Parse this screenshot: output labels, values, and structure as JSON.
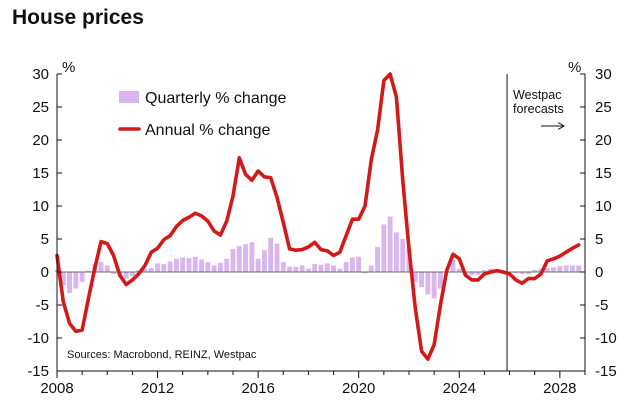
{
  "chart_data": {
    "type": "bar+line",
    "title": "House prices",
    "ylabel_left": "%",
    "ylabel_right": "%",
    "ylim": [
      -15,
      30
    ],
    "yticks": [
      -15,
      -10,
      -5,
      0,
      5,
      10,
      15,
      20,
      25,
      30
    ],
    "xlim": [
      2008,
      2029
    ],
    "xticks": [
      2008,
      2012,
      2016,
      2020,
      2024,
      2028
    ],
    "forecast_start": 2025.9,
    "forecast_label": [
      "Westpac",
      "forecasts"
    ],
    "source_note": "Sources: Macrobond, REINZ, Westpac",
    "series": [
      {
        "name": "Quarterly % change",
        "kind": "bar",
        "color": "#d9b6ee",
        "x": [
          2008.0,
          2008.25,
          2008.5,
          2008.75,
          2009.0,
          2009.25,
          2009.5,
          2009.75,
          2010.0,
          2010.25,
          2010.5,
          2010.75,
          2011.0,
          2011.25,
          2011.5,
          2011.75,
          2012.0,
          2012.25,
          2012.5,
          2012.75,
          2013.0,
          2013.25,
          2013.5,
          2013.75,
          2014.0,
          2014.25,
          2014.5,
          2014.75,
          2015.0,
          2015.25,
          2015.5,
          2015.75,
          2016.0,
          2016.25,
          2016.5,
          2016.75,
          2017.0,
          2017.25,
          2017.5,
          2017.75,
          2018.0,
          2018.25,
          2018.5,
          2018.75,
          2019.0,
          2019.25,
          2019.5,
          2019.75,
          2020.0,
          2020.25,
          2020.5,
          2020.75,
          2021.0,
          2021.25,
          2021.5,
          2021.75,
          2022.0,
          2022.25,
          2022.5,
          2022.75,
          2023.0,
          2023.25,
          2023.5,
          2023.75,
          2024.0,
          2024.25,
          2024.5,
          2024.75,
          2025.0,
          2025.25,
          2025.5,
          2025.75,
          2026.0,
          2026.25,
          2026.5,
          2026.75,
          2027.0,
          2027.25,
          2027.5,
          2027.75,
          2028.0,
          2028.25,
          2028.5,
          2028.75
        ],
        "values": [
          0.3,
          -2.0,
          -3.2,
          -2.5,
          -1.5,
          0.2,
          1.2,
          1.5,
          1.0,
          -0.3,
          -0.5,
          -1.0,
          -0.6,
          0.3,
          0.5,
          0.6,
          1.3,
          1.2,
          1.6,
          2.0,
          2.2,
          2.1,
          2.3,
          1.9,
          1.5,
          1.0,
          1.4,
          2.0,
          3.5,
          3.9,
          4.2,
          4.5,
          2.0,
          3.3,
          5.2,
          4.3,
          1.5,
          0.8,
          0.8,
          1.0,
          0.5,
          1.2,
          1.1,
          1.3,
          1.0,
          0.5,
          1.5,
          2.2,
          2.3,
          -0.2,
          1.0,
          3.8,
          7.2,
          8.4,
          6.0,
          5.0,
          3.5,
          -1.5,
          -2.3,
          -3.4,
          -4.0,
          -2.5,
          0.0,
          1.8,
          0.5,
          -0.5,
          -0.5,
          -0.4,
          0.3,
          0.5,
          0.3,
          -0.3,
          0.0,
          -0.2,
          -0.3,
          -0.3,
          0.3,
          0.5,
          0.6,
          0.7,
          0.9,
          1.0,
          1.0,
          1.0
        ]
      },
      {
        "name": "Annual % change",
        "kind": "line",
        "color": "#d11a1a",
        "x": [
          2008.0,
          2008.25,
          2008.5,
          2008.75,
          2009.0,
          2009.25,
          2009.5,
          2009.75,
          2010.0,
          2010.25,
          2010.5,
          2010.75,
          2011.0,
          2011.25,
          2011.5,
          2011.75,
          2012.0,
          2012.25,
          2012.5,
          2012.75,
          2013.0,
          2013.25,
          2013.5,
          2013.75,
          2014.0,
          2014.25,
          2014.5,
          2014.75,
          2015.0,
          2015.25,
          2015.5,
          2015.75,
          2016.0,
          2016.25,
          2016.5,
          2016.75,
          2017.0,
          2017.25,
          2017.5,
          2017.75,
          2018.0,
          2018.25,
          2018.5,
          2018.75,
          2019.0,
          2019.25,
          2019.5,
          2019.75,
          2020.0,
          2020.25,
          2020.5,
          2020.75,
          2021.0,
          2021.25,
          2021.5,
          2021.75,
          2022.0,
          2022.25,
          2022.5,
          2022.75,
          2023.0,
          2023.25,
          2023.5,
          2023.75,
          2024.0,
          2024.25,
          2024.5,
          2024.75,
          2025.0,
          2025.25,
          2025.5,
          2025.75,
          2026.0,
          2026.25,
          2026.5,
          2026.75,
          2027.0,
          2027.25,
          2027.5,
          2027.75,
          2028.0,
          2028.25,
          2028.5,
          2028.75
        ],
        "values": [
          2.5,
          -4.5,
          -7.8,
          -9.0,
          -8.8,
          -4.0,
          0.5,
          4.6,
          4.3,
          2.5,
          -0.5,
          -1.9,
          -1.2,
          -0.3,
          1.0,
          3.0,
          3.6,
          4.9,
          5.5,
          6.9,
          7.8,
          8.3,
          8.9,
          8.5,
          7.7,
          6.2,
          5.6,
          7.7,
          11.5,
          17.3,
          14.8,
          13.9,
          15.3,
          14.4,
          14.3,
          11.3,
          7.5,
          3.5,
          3.3,
          3.4,
          3.8,
          4.5,
          3.4,
          3.2,
          2.5,
          3.0,
          5.5,
          8.0,
          8.0,
          10.0,
          17.0,
          21.5,
          29.0,
          30.0,
          26.5,
          14.0,
          3.5,
          -5.5,
          -12.0,
          -13.2,
          -11.0,
          -5.0,
          0.2,
          2.7,
          2.0,
          -0.5,
          -1.2,
          -1.2,
          -0.3,
          0.0,
          0.2,
          0.0,
          -0.3,
          -1.2,
          -1.7,
          -1.0,
          -1.0,
          -0.3,
          1.7,
          2.0,
          2.4,
          3.0,
          3.6,
          4.1
        ]
      }
    ]
  }
}
